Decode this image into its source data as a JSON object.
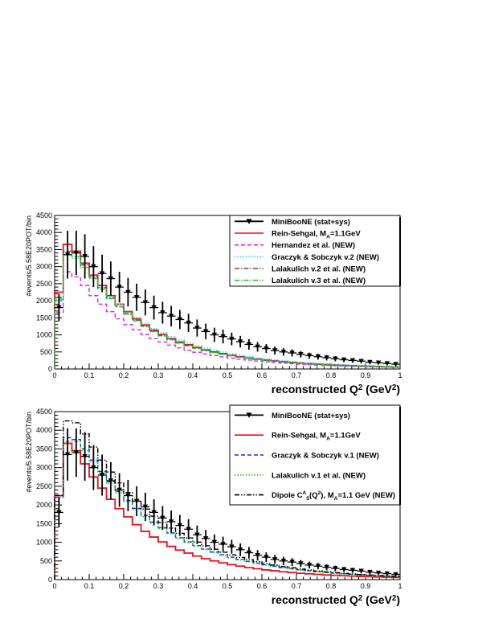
{
  "chart_data": [
    {
      "type": "line",
      "xlabel_main": "reconstructed Q",
      "xlabel_sup": "2",
      "xlabel_unit_open": " (GeV",
      "xlabel_unit_sup": "2",
      "xlabel_unit_close": ")",
      "ylabel": "#events/5.58E20POT/bin",
      "xlim": [
        0,
        1
      ],
      "ylim": [
        0,
        4500
      ],
      "xticks": [
        "0",
        "0.1",
        "0.2",
        "0.3",
        "0.4",
        "0.5",
        "0.6",
        "0.7",
        "0.8",
        "0.9",
        "1"
      ],
      "yticks": [
        "0",
        "500",
        "1000",
        "1500",
        "2000",
        "2500",
        "3000",
        "3500",
        "4000",
        "4500"
      ],
      "legend_position": "top-right",
      "data": {
        "name": "MiniBooNE (stat+sys)",
        "x": [
          0.0125,
          0.0375,
          0.0625,
          0.0875,
          0.1125,
          0.1375,
          0.1625,
          0.1875,
          0.2125,
          0.2375,
          0.2625,
          0.2875,
          0.3125,
          0.3375,
          0.3625,
          0.3875,
          0.4125,
          0.4375,
          0.4625,
          0.4875,
          0.5125,
          0.5375,
          0.5625,
          0.5875,
          0.6125,
          0.6375,
          0.6625,
          0.6875,
          0.7125,
          0.7375,
          0.7625,
          0.7875,
          0.8125,
          0.8375,
          0.8625,
          0.8875,
          0.9125,
          0.9375,
          0.9625,
          0.9875
        ],
        "y": [
          1800,
          3350,
          3400,
          3300,
          3000,
          2800,
          2650,
          2400,
          2250,
          2100,
          1950,
          1800,
          1650,
          1550,
          1450,
          1350,
          1200,
          1100,
          1000,
          950,
          880,
          800,
          720,
          650,
          600,
          540,
          500,
          470,
          430,
          390,
          360,
          330,
          300,
          270,
          250,
          230,
          200,
          180,
          160,
          140
        ],
        "err": [
          400,
          700,
          650,
          650,
          600,
          550,
          500,
          450,
          420,
          400,
          380,
          350,
          320,
          300,
          280,
          270,
          250,
          230,
          210,
          200,
          185,
          170,
          155,
          140,
          130,
          120,
          110,
          105,
          95,
          90,
          85,
          80,
          75,
          70,
          65,
          60,
          55,
          50,
          45,
          40
        ]
      },
      "series": [
        {
          "name": "Rein-Sehgal, M",
          "name_sub": "A",
          "name_tail": "=1.1GeV",
          "color": "#e8101b",
          "dash": "solid",
          "values": [
            2250,
            3650,
            3450,
            3100,
            2750,
            2450,
            2150,
            1900,
            1680,
            1470,
            1290,
            1140,
            1010,
            890,
            790,
            710,
            630,
            560,
            500,
            450,
            400,
            360,
            320,
            290,
            260,
            235,
            210,
            190,
            170,
            155,
            140,
            125,
            115,
            105,
            95,
            85,
            78,
            70,
            64,
            58
          ]
        },
        {
          "name": "Hernandez et al. (NEW)",
          "color": "#e020e0",
          "dash": "dashed",
          "values": [
            1650,
            2850,
            2700,
            2450,
            2150,
            1900,
            1680,
            1470,
            1300,
            1150,
            1010,
            890,
            790,
            700,
            620,
            550,
            490,
            440,
            395,
            355,
            320,
            290,
            260,
            235,
            210,
            190,
            172,
            155,
            140,
            128,
            115,
            104,
            95,
            86,
            78,
            71,
            65,
            59,
            54,
            49
          ]
        },
        {
          "name": "Graczyk & Sobczyk v.2 (NEW)",
          "color": "#20d8e8",
          "dash": "dotted",
          "values": [
            2000,
            3350,
            3250,
            2980,
            2680,
            2400,
            2130,
            1900,
            1700,
            1510,
            1340,
            1190,
            1060,
            950,
            850,
            760,
            680,
            610,
            550,
            495,
            445,
            400,
            360,
            325,
            295,
            268,
            242,
            220,
            200,
            182,
            165,
            150,
            137,
            125,
            114,
            104,
            95,
            87,
            80,
            73
          ]
        },
        {
          "name": "Lalakulich v.2 et al. (NEW)",
          "color": "#555555",
          "dash": "dashdot",
          "values": [
            2100,
            3450,
            3400,
            3050,
            2700,
            2380,
            2090,
            1840,
            1620,
            1430,
            1260,
            1110,
            980,
            870,
            770,
            685,
            610,
            545,
            488,
            438,
            393,
            353,
            318,
            287,
            259,
            234,
            212,
            192,
            174,
            158,
            143,
            130,
            118,
            107,
            97,
            88,
            80,
            73,
            66,
            60
          ]
        },
        {
          "name": "Lalakulich v.3 et al. (NEW)",
          "color": "#30c030",
          "dash": "dashdot",
          "values": [
            2050,
            3350,
            3300,
            2980,
            2650,
            2340,
            2060,
            1820,
            1600,
            1410,
            1240,
            1095,
            965,
            855,
            760,
            675,
            600,
            535,
            478,
            428,
            384,
            345,
            310,
            280,
            252,
            228,
            206,
            187,
            169,
            153,
            139,
            126,
            114,
            104,
            94,
            86,
            78,
            71,
            65,
            59
          ]
        }
      ]
    },
    {
      "type": "line",
      "xlabel_main": "reconstructed Q",
      "xlabel_sup": "2",
      "xlabel_unit_open": " (GeV",
      "xlabel_unit_sup": "2",
      "xlabel_unit_close": ")",
      "ylabel": "#events/5.58E20POT/bin",
      "xlim": [
        0,
        1
      ],
      "ylim": [
        0,
        4500
      ],
      "xticks": [
        "0",
        "0.1",
        "0.2",
        "0.3",
        "0.4",
        "0.5",
        "0.6",
        "0.7",
        "0.8",
        "0.9",
        "1"
      ],
      "yticks": [
        "0",
        "500",
        "1000",
        "1500",
        "2000",
        "2500",
        "3000",
        "3500",
        "4000",
        "4500"
      ],
      "legend_position": "top-right",
      "data": {
        "name": "MiniBooNE (stat+sys)",
        "x": [
          0.0125,
          0.0375,
          0.0625,
          0.0875,
          0.1125,
          0.1375,
          0.1625,
          0.1875,
          0.2125,
          0.2375,
          0.2625,
          0.2875,
          0.3125,
          0.3375,
          0.3625,
          0.3875,
          0.4125,
          0.4375,
          0.4625,
          0.4875,
          0.5125,
          0.5375,
          0.5625,
          0.5875,
          0.6125,
          0.6375,
          0.6625,
          0.6875,
          0.7125,
          0.7375,
          0.7625,
          0.7875,
          0.8125,
          0.8375,
          0.8625,
          0.8875,
          0.9125,
          0.9375,
          0.9625,
          0.9875
        ],
        "y": [
          1800,
          3350,
          3400,
          3300,
          3000,
          2800,
          2650,
          2400,
          2250,
          2100,
          1950,
          1800,
          1650,
          1550,
          1450,
          1350,
          1200,
          1100,
          1000,
          950,
          880,
          800,
          720,
          650,
          600,
          540,
          500,
          470,
          430,
          390,
          360,
          330,
          300,
          270,
          250,
          230,
          200,
          180,
          160,
          140
        ],
        "err": [
          400,
          700,
          650,
          650,
          600,
          550,
          500,
          450,
          420,
          400,
          380,
          350,
          320,
          300,
          280,
          270,
          250,
          230,
          210,
          200,
          185,
          170,
          155,
          140,
          130,
          120,
          110,
          105,
          95,
          90,
          85,
          80,
          75,
          70,
          65,
          60,
          55,
          50,
          45,
          40
        ]
      },
      "series": [
        {
          "name": "Rein-Sehgal, M",
          "name_sub": "A",
          "name_tail": "=1.1GeV",
          "color": "#e8101b",
          "dash": "solid",
          "values": [
            2250,
            3650,
            3450,
            3100,
            2750,
            2450,
            2150,
            1900,
            1680,
            1470,
            1290,
            1140,
            1010,
            890,
            790,
            710,
            630,
            560,
            500,
            450,
            400,
            360,
            320,
            290,
            260,
            235,
            210,
            190,
            170,
            155,
            140,
            125,
            115,
            105,
            95,
            85,
            78,
            70,
            64,
            58
          ]
        },
        {
          "name": "Graczyk & Sobczyk v.1 (NEW)",
          "color": "#1030e0",
          "dash": "dashed",
          "values": [
            2200,
            3800,
            3750,
            3500,
            3200,
            2900,
            2620,
            2360,
            2120,
            1910,
            1720,
            1540,
            1390,
            1250,
            1120,
            1010,
            910,
            820,
            740,
            665,
            600,
            540,
            488,
            440,
            397,
            358,
            323,
            292,
            264,
            238,
            215,
            194,
            175,
            158,
            143,
            129,
            116,
            105,
            95,
            86
          ]
        },
        {
          "name": "Lalakulich v.1 et al. (NEW)",
          "color": "#20c020",
          "dash": "dotted",
          "values": [
            2200,
            3700,
            3700,
            3450,
            3150,
            2860,
            2580,
            2320,
            2090,
            1880,
            1690,
            1520,
            1370,
            1230,
            1105,
            995,
            895,
            805,
            725,
            653,
            588,
            529,
            476,
            429,
            386,
            348,
            313,
            282,
            254,
            229,
            206,
            186,
            167,
            151,
            136,
            122,
            110,
            99,
            89,
            80
          ]
        },
        {
          "name": "Dipole C",
          "name_sup": "A",
          "name_sub": "5",
          "name_tail": "(Q",
          "name_tail_sup": "2",
          "name_tail2": "), M",
          "name_tail2_sub": "A",
          "name_tail3": "=1.1 GeV  (NEW)",
          "color": "#000000",
          "dash": "dashdotdot",
          "values": [
            2250,
            4250,
            4200,
            3900,
            3550,
            3200,
            2880,
            2590,
            2330,
            2100,
            1890,
            1700,
            1530,
            1380,
            1240,
            1115,
            1005,
            905,
            815,
            733,
            660,
            594,
            535,
            481,
            433,
            390,
            351,
            316,
            284,
            256,
            230,
            207,
            186,
            168,
            151,
            136,
            122,
            110,
            99,
            89
          ]
        }
      ]
    }
  ]
}
